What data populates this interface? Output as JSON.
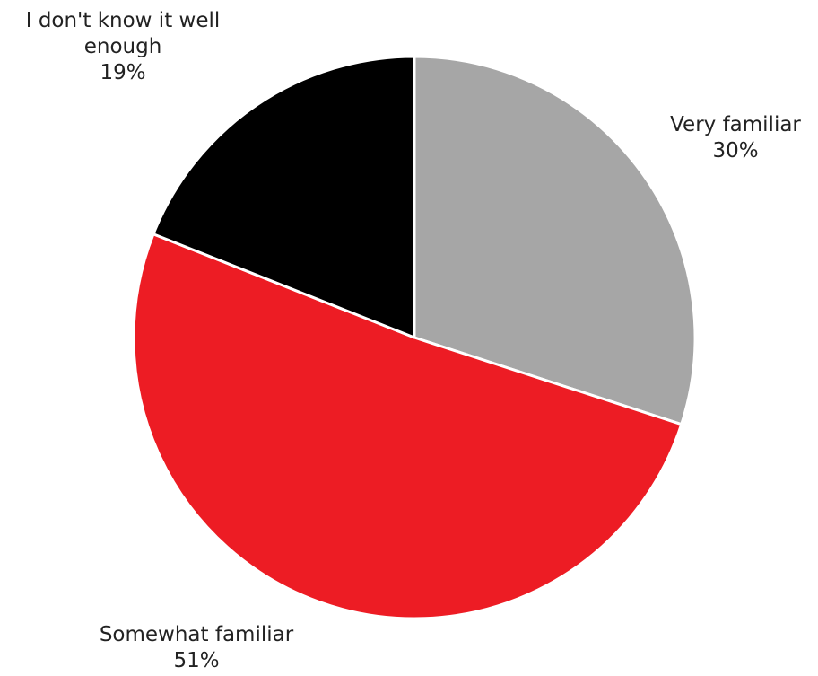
{
  "chart_data": {
    "type": "pie",
    "categories": [
      "Very familiar",
      "Somewhat familiar",
      "I don't know it well enough"
    ],
    "values": [
      30,
      51,
      19
    ],
    "value_labels": [
      "30%",
      "51%",
      "19%"
    ],
    "label_lines": [
      [
        "Very familiar"
      ],
      [
        "Somewhat familiar"
      ],
      [
        "I don't know it well",
        "enough"
      ]
    ],
    "colors": [
      "#a6a6a6",
      "#ed1c24",
      "#000000"
    ],
    "start_angle": "12 o'clock",
    "direction": "clockwise",
    "legend": "none"
  }
}
